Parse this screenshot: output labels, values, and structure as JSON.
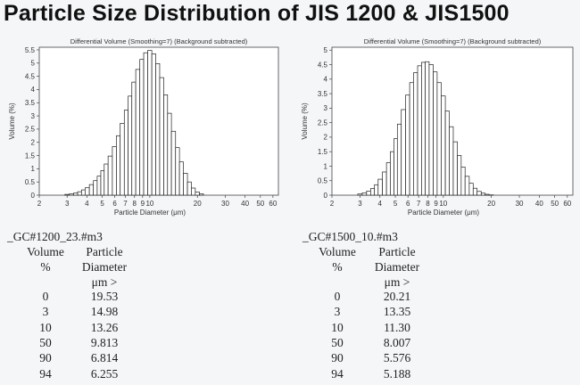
{
  "page": {
    "title": "Particle Size Distribution of JIS 1200 & JIS1500"
  },
  "chart_data": [
    {
      "type": "bar",
      "title": "Differential Volume  (Smoothing=7) (Background subtracted)",
      "xlabel": "Particle Diameter (μm)",
      "ylabel": "Volume (%)",
      "x_scale": "log",
      "xlim": [
        2,
        65
      ],
      "ylim": [
        0,
        5.6
      ],
      "x_ticks": [
        "2",
        "3",
        "4",
        "5",
        "6",
        "7",
        "8",
        "9",
        "10",
        "20",
        "30",
        "40",
        "50",
        "60"
      ],
      "y_ticks": [
        "0",
        "0.5",
        "1",
        "1.5",
        "2",
        "2.5",
        "3",
        "3.5",
        "4",
        "4.5",
        "5",
        "5.5"
      ],
      "peak_diameter": 10.0,
      "x": [
        3.0,
        3.2,
        3.4,
        3.6,
        3.8,
        4.0,
        4.3,
        4.5,
        4.8,
        5.0,
        5.3,
        5.6,
        6.0,
        6.3,
        6.7,
        7.1,
        7.5,
        7.9,
        8.4,
        8.9,
        9.4,
        10.0,
        10.6,
        11.2,
        11.9,
        12.6,
        13.3,
        14.1,
        15.0,
        15.8,
        16.8,
        17.8,
        18.8,
        20.0,
        21.2
      ],
      "values": [
        0.03,
        0.05,
        0.08,
        0.13,
        0.2,
        0.28,
        0.4,
        0.55,
        0.72,
        0.93,
        1.18,
        1.48,
        1.84,
        2.25,
        2.72,
        3.22,
        3.75,
        4.28,
        4.76,
        5.14,
        5.39,
        5.48,
        5.35,
        4.98,
        4.45,
        3.8,
        3.1,
        2.42,
        1.8,
        1.26,
        0.83,
        0.5,
        0.27,
        0.12,
        0.05
      ]
    },
    {
      "type": "bar",
      "title": "Differential Volume  (Smoothing=7) (Background subtracted)",
      "xlabel": "Particle Diameter (μm)",
      "ylabel": "Volume (%)",
      "x_scale": "log",
      "xlim": [
        2,
        65
      ],
      "ylim": [
        0,
        5.1
      ],
      "x_ticks": [
        "2",
        "3",
        "4",
        "5",
        "6",
        "7",
        "8",
        "9",
        "10",
        "20",
        "30",
        "40",
        "50",
        "60"
      ],
      "y_ticks": [
        "0",
        "0.5",
        "1",
        "1.5",
        "2",
        "2.5",
        "3",
        "3.5",
        "4",
        "4.5",
        "5"
      ],
      "peak_diameter": 8.0,
      "x": [
        3.0,
        3.2,
        3.4,
        3.6,
        3.8,
        4.0,
        4.3,
        4.5,
        4.8,
        5.0,
        5.3,
        5.6,
        6.0,
        6.3,
        6.7,
        7.1,
        7.5,
        7.9,
        8.4,
        8.9,
        9.4,
        10.0,
        10.6,
        11.2,
        11.9,
        12.6,
        13.3,
        14.1,
        15.0,
        15.8,
        16.8,
        17.8,
        18.8,
        20.0,
        21.2
      ],
      "values": [
        0.04,
        0.08,
        0.14,
        0.23,
        0.36,
        0.55,
        0.8,
        1.12,
        1.5,
        1.95,
        2.45,
        2.95,
        3.45,
        3.88,
        4.22,
        4.46,
        4.58,
        4.6,
        4.5,
        4.25,
        3.88,
        3.42,
        2.9,
        2.36,
        1.84,
        1.37,
        0.97,
        0.65,
        0.41,
        0.24,
        0.13,
        0.07,
        0.03,
        0.01,
        0.0
      ]
    }
  ],
  "tables": [
    {
      "file": "_GC#1200_23.#m3",
      "col1_header": [
        "Volume",
        "%"
      ],
      "col2_header": [
        "Particle",
        "Diameter",
        "μm >"
      ],
      "rows": [
        {
          "volume": "0",
          "diameter": "19.53"
        },
        {
          "volume": "3",
          "diameter": "14.98"
        },
        {
          "volume": "10",
          "diameter": "13.26"
        },
        {
          "volume": "50",
          "diameter": "9.813"
        },
        {
          "volume": "90",
          "diameter": "6.814"
        },
        {
          "volume": "94",
          "diameter": "6.255"
        }
      ]
    },
    {
      "file": "_GC#1500_10.#m3",
      "col1_header": [
        "Volume",
        "%"
      ],
      "col2_header": [
        "Particle",
        "Diameter",
        "μm >"
      ],
      "rows": [
        {
          "volume": "0",
          "diameter": "20.21"
        },
        {
          "volume": "3",
          "diameter": "13.35"
        },
        {
          "volume": "10",
          "diameter": "11.30"
        },
        {
          "volume": "50",
          "diameter": "8.007"
        },
        {
          "volume": "90",
          "diameter": "5.576"
        },
        {
          "volume": "94",
          "diameter": "5.188"
        }
      ]
    }
  ]
}
